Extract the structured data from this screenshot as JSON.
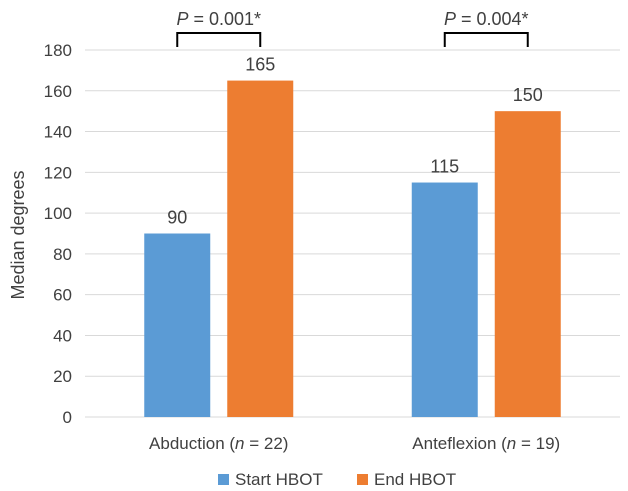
{
  "chart_data": {
    "type": "bar",
    "categories": [
      "Abduction (n = 22)",
      "Anteflexion (n = 19)"
    ],
    "category_parts": [
      {
        "pre": "Abduction (",
        "italic": "n",
        "post": " = 22)"
      },
      {
        "pre": "Anteflexion (",
        "italic": "n",
        "post": " = 19)"
      }
    ],
    "series": [
      {
        "name": "Start HBOT",
        "values": [
          90,
          115
        ],
        "color": "#5b9bd5"
      },
      {
        "name": "End HBOT",
        "values": [
          165,
          150
        ],
        "color": "#ed7d31"
      }
    ],
    "title": "",
    "xlabel": "",
    "ylabel": "Median degrees",
    "ylim": [
      0,
      180
    ],
    "yticks": [
      0,
      20,
      40,
      60,
      80,
      100,
      120,
      140,
      160,
      180
    ],
    "grid": true,
    "legend": "bottom",
    "annotations": [
      {
        "category_index": 0,
        "italic": "P",
        "text": " = 0.001*"
      },
      {
        "category_index": 1,
        "italic": "P",
        "text": " = 0.004*"
      }
    ]
  }
}
